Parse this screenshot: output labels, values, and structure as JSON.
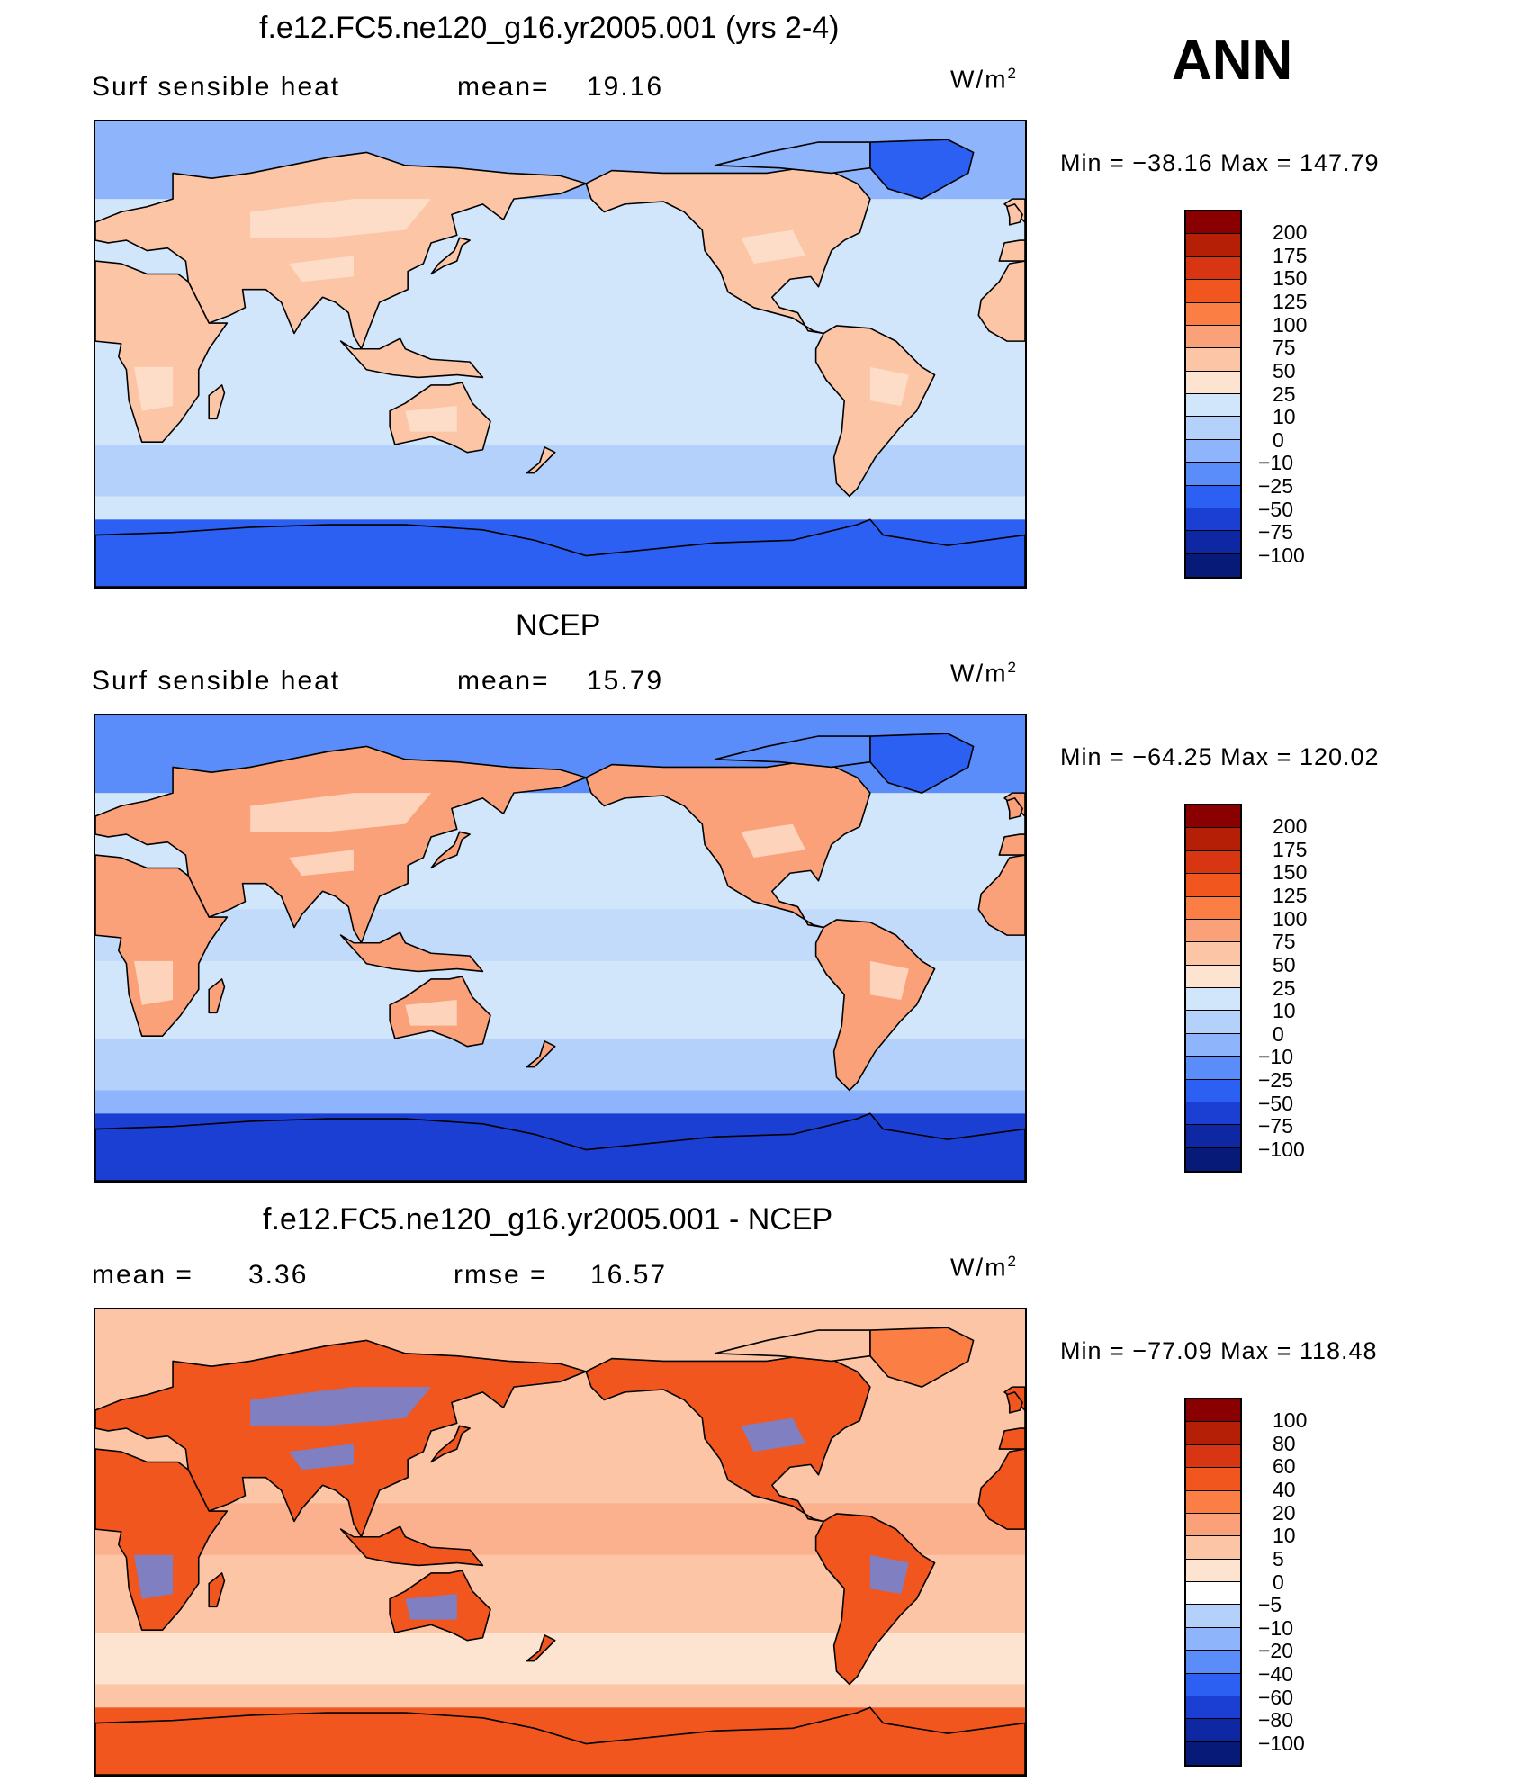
{
  "season": "ANN",
  "panels": [
    {
      "id": "model",
      "title": "f.e12.FC5.ne120_g16.yr2005.001 (yrs 2-4)",
      "variable": "Surf  sensible heat",
      "stat1_label": "mean=",
      "stat1_value": "19.16",
      "stat2_label": "",
      "stat2_value": "",
      "units_base": "W/m",
      "units_exp": "2",
      "min_label": "Min  =",
      "min_value": "−38.16",
      "max_label": "Max  =",
      "max_value": "147.79",
      "colorbar": {
        "labels": [
          "200",
          "175",
          "150",
          "125",
          "100",
          "75",
          "50",
          "25",
          "10",
          "0",
          "−10",
          "−25",
          "−50",
          "−75",
          "−100"
        ],
        "colors": [
          "#8a0000",
          "#b51f06",
          "#d83512",
          "#f2561f",
          "#fb7e45",
          "#fba17a",
          "#fcc5a6",
          "#fde4d1",
          "#d2e6fb",
          "#b4d1fb",
          "#8eb4fb",
          "#5a8dfa",
          "#2b60f2",
          "#1b3fd3",
          "#0e28a4",
          "#081a77"
        ]
      },
      "map": {
        "ocean_colors": [
          "#d2e6fb",
          "#d2e6fb",
          "#b4d1fb",
          "#d2e6fb"
        ],
        "land_color": "#fcc5a6",
        "land_alt_color": "#fde4d1",
        "north_cap_color": "#8eb4fb",
        "south_cap_color": "#2b60f2",
        "greenland_color": "#2b60f2"
      }
    },
    {
      "id": "obs",
      "title": "NCEP",
      "variable": "Surf  sensible heat",
      "stat1_label": "mean=",
      "stat1_value": "15.79",
      "stat2_label": "",
      "stat2_value": "",
      "units_base": "W/m",
      "units_exp": "2",
      "min_label": "Min  =",
      "min_value": "−64.25",
      "max_label": "Max  =",
      "max_value": "120.02",
      "colorbar": {
        "labels": [
          "200",
          "175",
          "150",
          "125",
          "100",
          "75",
          "50",
          "25",
          "10",
          "0",
          "−10",
          "−25",
          "−50",
          "−75",
          "−100"
        ],
        "colors": [
          "#8a0000",
          "#b51f06",
          "#d83512",
          "#f2561f",
          "#fb7e45",
          "#fba17a",
          "#fcc5a6",
          "#fde4d1",
          "#d2e6fb",
          "#b4d1fb",
          "#8eb4fb",
          "#5a8dfa",
          "#2b60f2",
          "#1b3fd3",
          "#0e28a4",
          "#081a77"
        ]
      },
      "map": {
        "ocean_colors": [
          "#b4d1fb",
          "#d2e6fb",
          "#b4d1fb",
          "#8eb4fb"
        ],
        "land_color": "#fba17a",
        "land_alt_color": "#fde4d1",
        "north_cap_color": "#5a8dfa",
        "south_cap_color": "#1b3fd3",
        "greenland_color": "#2b60f2"
      }
    },
    {
      "id": "diff",
      "title": "f.e12.FC5.ne120_g16.yr2005.001 - NCEP",
      "variable": "",
      "stat1_label": "mean  =",
      "stat1_value": "3.36",
      "stat2_label": "rmse  =",
      "stat2_value": "16.57",
      "units_base": "W/m",
      "units_exp": "2",
      "min_label": "Min  =",
      "min_value": "−77.09",
      "max_label": "Max  =",
      "max_value": "118.48",
      "colorbar": {
        "labels": [
          "100",
          "80",
          "60",
          "40",
          "20",
          "10",
          "5",
          "0",
          "−5",
          "−10",
          "−20",
          "−40",
          "−60",
          "−80",
          "−100"
        ],
        "colors": [
          "#8a0000",
          "#b51f06",
          "#d83512",
          "#f2561f",
          "#fb7e45",
          "#fba17a",
          "#fcc5a6",
          "#fde4d1",
          "#ffffff",
          "#b4d1fb",
          "#8eb4fb",
          "#5a8dfa",
          "#2b60f2",
          "#1b3fd3",
          "#0e28a4",
          "#081a77"
        ]
      },
      "map": {
        "ocean_colors": [
          "#fba17a",
          "#fcc5a6",
          "#fde4d1",
          "#fcc5a6"
        ],
        "land_color": "#f2561f",
        "land_alt_color": "#5a8dfa",
        "north_cap_color": "#fcc5a6",
        "south_cap_color": "#f2561f",
        "greenland_color": "#fb7e45"
      }
    }
  ]
}
